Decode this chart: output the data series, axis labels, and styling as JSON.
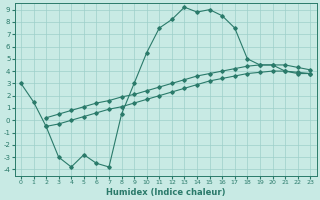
{
  "xlabel": "Humidex (Indice chaleur)",
  "xlim": [
    -0.5,
    23.5
  ],
  "ylim": [
    -4.5,
    9.5
  ],
  "yticks": [
    -4,
    -3,
    -2,
    -1,
    0,
    1,
    2,
    3,
    4,
    5,
    6,
    7,
    8,
    9
  ],
  "xticks": [
    0,
    1,
    2,
    3,
    4,
    5,
    6,
    7,
    8,
    9,
    10,
    11,
    12,
    13,
    14,
    15,
    16,
    17,
    18,
    19,
    20,
    21,
    22,
    23
  ],
  "bg_color": "#c8eae4",
  "grid_color": "#9dcfca",
  "line_color": "#2a7a6a",
  "line_width": 0.8,
  "marker": "D",
  "marker_size": 1.8,
  "line1_x": [
    0,
    1,
    2,
    3,
    4,
    5,
    6,
    7,
    8,
    9,
    10,
    11,
    12,
    13,
    14,
    15,
    16,
    17,
    18,
    19,
    20,
    21,
    22,
    23
  ],
  "line1_y": [
    3.0,
    1.5,
    -0.5,
    -3.0,
    -3.8,
    -2.8,
    -3.5,
    -3.8,
    0.5,
    3.0,
    5.5,
    7.5,
    8.2,
    9.2,
    8.8,
    9.0,
    8.5,
    7.5,
    5.0,
    4.5,
    4.5,
    4.0,
    3.8,
    3.8
  ],
  "line2_x": [
    2,
    3,
    4,
    5,
    6,
    7,
    8,
    9,
    10,
    11,
    12,
    13,
    14,
    15,
    16,
    17,
    18,
    19,
    20,
    21,
    22,
    23
  ],
  "line2_y": [
    -0.5,
    -0.3,
    0.0,
    0.3,
    0.6,
    0.9,
    1.1,
    1.4,
    1.7,
    2.0,
    2.3,
    2.6,
    2.9,
    3.2,
    3.4,
    3.6,
    3.8,
    3.9,
    4.0,
    4.0,
    3.9,
    3.8
  ],
  "line3_x": [
    2,
    3,
    4,
    5,
    6,
    7,
    8,
    9,
    10,
    11,
    12,
    13,
    14,
    15,
    16,
    17,
    18,
    19,
    20,
    21,
    22,
    23
  ],
  "line3_y": [
    0.2,
    0.5,
    0.8,
    1.1,
    1.4,
    1.6,
    1.9,
    2.1,
    2.4,
    2.7,
    3.0,
    3.3,
    3.6,
    3.8,
    4.0,
    4.2,
    4.4,
    4.5,
    4.5,
    4.5,
    4.3,
    4.1
  ]
}
